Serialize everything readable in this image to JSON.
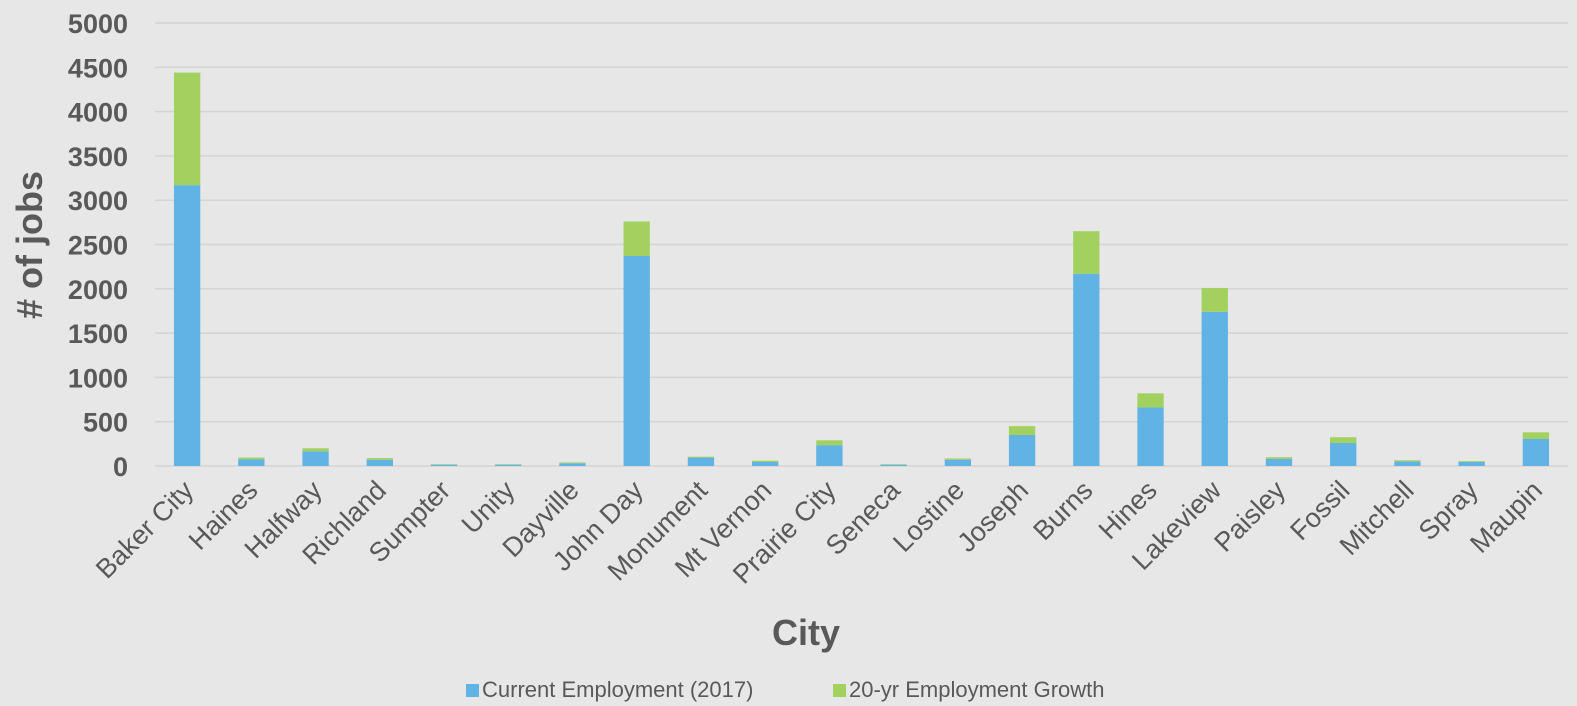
{
  "chart_data": {
    "type": "bar",
    "stacked": true,
    "title": "",
    "xlabel": "City",
    "ylabel": "# of jobs",
    "ylim": [
      0,
      5000
    ],
    "yticks": [
      0,
      500,
      1000,
      1500,
      2000,
      2500,
      3000,
      3500,
      4000,
      4500,
      5000
    ],
    "grid": true,
    "legend_position": "bottom",
    "categories": [
      "Baker City",
      "Haines",
      "Halfway",
      "Richland",
      "Sumpter",
      "Unity",
      "Dayville",
      "John Day",
      "Monument",
      "Mt Vernon",
      "Prairie City",
      "Seneca",
      "Lostine",
      "Joseph",
      "Burns",
      "Hines",
      "Lakeview",
      "Paisley",
      "Fossil",
      "Mitchell",
      "Spray",
      "Maupin"
    ],
    "series": [
      {
        "name": "Current Employment (2017)",
        "color": "#62b3e5",
        "values": [
          3170,
          75,
          165,
          70,
          15,
          15,
          30,
          2370,
          95,
          45,
          235,
          15,
          70,
          350,
          2170,
          660,
          1740,
          80,
          260,
          50,
          45,
          305
        ]
      },
      {
        "name": "20-yr Employment Growth",
        "color": "#a3d15f",
        "values": [
          1270,
          20,
          35,
          20,
          5,
          5,
          10,
          390,
          10,
          15,
          55,
          5,
          15,
          100,
          480,
          160,
          270,
          20,
          65,
          15,
          10,
          75
        ]
      }
    ]
  }
}
